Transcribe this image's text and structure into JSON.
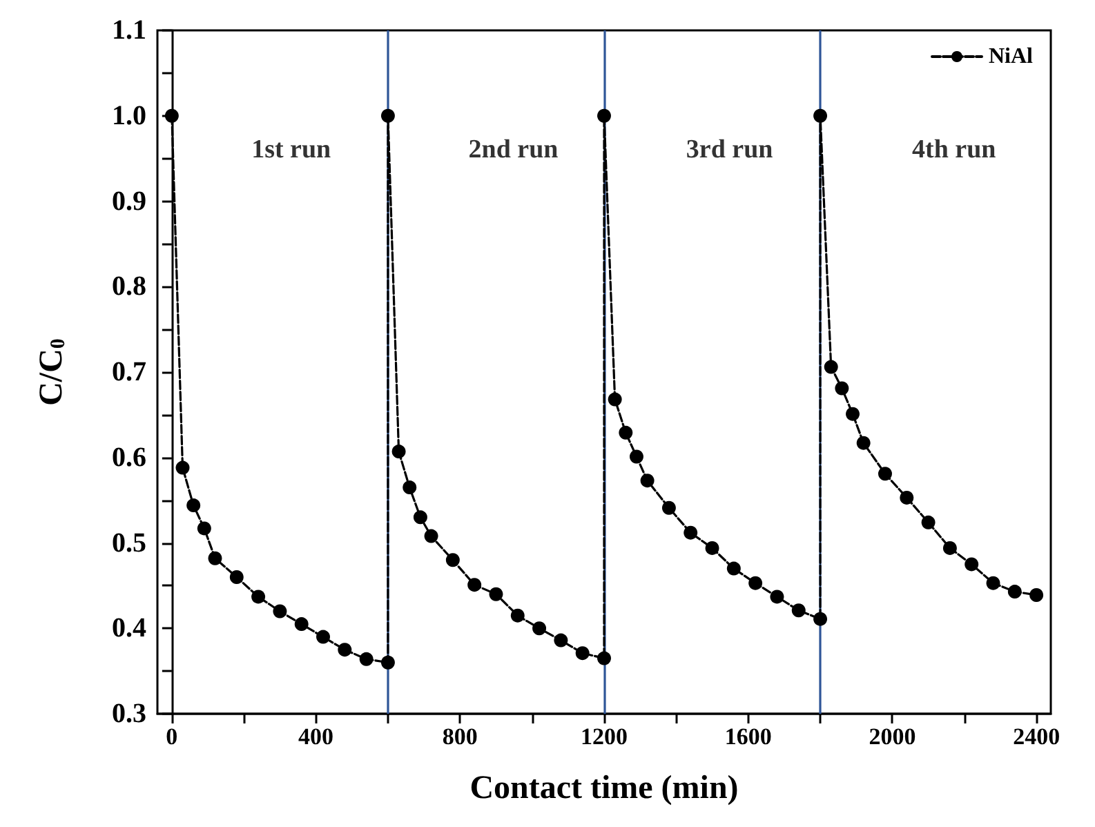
{
  "chart_data": {
    "type": "line",
    "xlabel": "Contact time (min)",
    "ylabel": "C/C$_{0}$",
    "x": [
      0,
      30,
      60,
      90,
      120,
      180,
      240,
      300,
      360,
      420,
      480,
      540,
      600,
      600,
      630,
      660,
      690,
      720,
      780,
      840,
      900,
      960,
      1020,
      1080,
      1140,
      1200,
      1200,
      1230,
      1260,
      1290,
      1320,
      1380,
      1440,
      1500,
      1560,
      1620,
      1680,
      1740,
      1800,
      1800,
      1830,
      1860,
      1890,
      1920,
      1980,
      2040,
      2100,
      2160,
      2220,
      2280,
      2340,
      2400
    ],
    "series": [
      {
        "name": "NiAl",
        "color": "#000000",
        "values": [
          1.0,
          0.588,
          0.544,
          0.517,
          0.482,
          0.46,
          0.437,
          0.42,
          0.405,
          0.39,
          0.375,
          0.364,
          0.36,
          1.0,
          0.607,
          0.565,
          0.53,
          0.508,
          0.48,
          0.451,
          0.44,
          0.415,
          0.4,
          0.386,
          0.371,
          0.365,
          1.0,
          0.668,
          0.629,
          0.601,
          0.573,
          0.541,
          0.512,
          0.494,
          0.47,
          0.453,
          0.437,
          0.421,
          0.411,
          1.0,
          0.706,
          0.681,
          0.651,
          0.617,
          0.581,
          0.553,
          0.524,
          0.494,
          0.475,
          0.453,
          0.443,
          0.439
        ]
      }
    ],
    "xlim": [
      -40,
      2440
    ],
    "xticks": [
      0,
      400,
      800,
      1200,
      1600,
      2000,
      2400
    ],
    "ylim": [
      0.3,
      1.1
    ],
    "yticks": [
      0.3,
      0.4,
      0.5,
      0.6,
      0.7,
      0.8,
      0.9,
      {
        "value": 1.0,
        "label": "1.0"
      },
      1.1
    ],
    "ref_lines": [
      {
        "axis": "x",
        "value": 600,
        "color": "#2e5597"
      },
      {
        "axis": "x",
        "value": 1200,
        "color": "#2e5597"
      },
      {
        "axis": "x",
        "value": 1800,
        "color": "#2e5597"
      }
    ],
    "annotations": [
      "1st run",
      "2nd run",
      "3rd run",
      "4th run"
    ],
    "legend": "top right",
    "marker": "circle",
    "line_style": "dashed",
    "grid": false
  }
}
